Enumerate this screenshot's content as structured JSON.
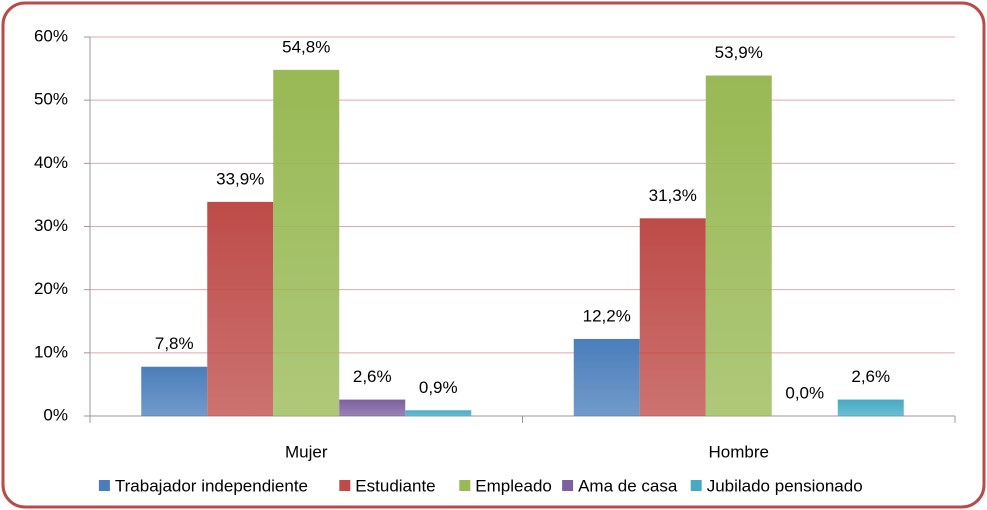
{
  "chart_data": {
    "type": "bar",
    "categories": [
      "Mujer",
      "Hombre"
    ],
    "series": [
      {
        "name": "Trabajador independiente",
        "color": "#4a7ebb",
        "values": [
          7.8,
          12.2
        ],
        "value_labels": [
          "7,8%",
          "12,2%"
        ]
      },
      {
        "name": "Estudiante",
        "color": "#be4b48",
        "values": [
          33.9,
          31.3
        ],
        "value_labels": [
          "33,9%",
          "31,3%"
        ]
      },
      {
        "name": "Empleado",
        "color": "#98b954",
        "values": [
          54.8,
          53.9
        ],
        "value_labels": [
          "54,8%",
          "53,9%"
        ]
      },
      {
        "name": "Ama de casa",
        "color": "#7d60a0",
        "values": [
          2.6,
          0.0
        ],
        "value_labels": [
          "2,6%",
          "0,0%"
        ]
      },
      {
        "name": "Jubilado pensionado",
        "color": "#46aac5",
        "values": [
          0.9,
          2.6
        ],
        "value_labels": [
          "0,9%",
          "2,6%"
        ]
      }
    ],
    "ylim": [
      0,
      60
    ],
    "yticks": [
      {
        "value": 0,
        "label": "0%"
      },
      {
        "value": 10,
        "label": "10%"
      },
      {
        "value": 20,
        "label": "20%"
      },
      {
        "value": 30,
        "label": "30%"
      },
      {
        "value": 40,
        "label": "40%"
      },
      {
        "value": 50,
        "label": "50%"
      },
      {
        "value": 60,
        "label": "60%"
      }
    ],
    "grid": true,
    "legend": "bottom"
  }
}
